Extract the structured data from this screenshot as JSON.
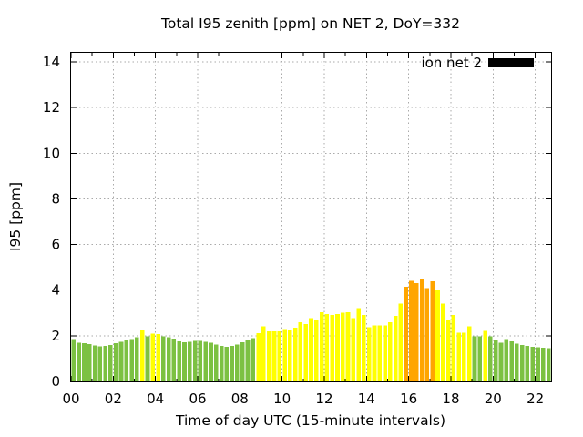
{
  "chart_data": {
    "type": "bar",
    "title": "Total I95 zenith [ppm] on NET 2, DoY=332",
    "xlabel": "Time of day UTC (15-minute intervals)",
    "ylabel": "I95 [ppm]",
    "legend": {
      "label": "ion net 2",
      "swatch_color": "#000000",
      "position": "top-right-inside"
    },
    "grid": true,
    "ylim": [
      0,
      14.4
    ],
    "xlim_hours": [
      0,
      22.75
    ],
    "y_ticks": [
      0,
      2,
      4,
      6,
      8,
      10,
      12,
      14
    ],
    "x_tick_hours": [
      0,
      2,
      4,
      6,
      8,
      10,
      12,
      14,
      16,
      18,
      20,
      22
    ],
    "x_tick_labels": [
      "00",
      "02",
      "04",
      "06",
      "08",
      "10",
      "12",
      "14",
      "16",
      "18",
      "20",
      "22"
    ],
    "x_minor_tick_hours": [
      1,
      3,
      5,
      7,
      9,
      11,
      13,
      15,
      17,
      19,
      21
    ],
    "x_start_hour": 0,
    "x_step_hours": 0.25,
    "interval_minutes": 15,
    "bar_colors": {
      "low": "#7CC142",
      "mid": "#FFFF00",
      "high": "#FFA500",
      "thresholds": [
        2,
        4
      ]
    },
    "series": [
      {
        "name": "ion net 2",
        "values": [
          1.85,
          1.7,
          1.67,
          1.63,
          1.57,
          1.53,
          1.56,
          1.6,
          1.67,
          1.74,
          1.82,
          1.86,
          1.93,
          2.26,
          1.98,
          2.09,
          2.08,
          1.98,
          1.94,
          1.88,
          1.76,
          1.71,
          1.73,
          1.78,
          1.78,
          1.73,
          1.69,
          1.62,
          1.56,
          1.52,
          1.56,
          1.62,
          1.72,
          1.82,
          1.89,
          2.11,
          2.42,
          2.19,
          2.19,
          2.2,
          2.29,
          2.25,
          2.35,
          2.59,
          2.51,
          2.78,
          2.69,
          3.04,
          2.95,
          2.91,
          2.95,
          3.02,
          3.04,
          2.78,
          3.22,
          2.91,
          2.38,
          2.46,
          2.46,
          2.46,
          2.6,
          2.88,
          3.42,
          4.15,
          4.41,
          4.31,
          4.47,
          4.08,
          4.39,
          3.99,
          3.42,
          2.68,
          2.91,
          2.13,
          2.13,
          2.42,
          1.97,
          1.97,
          2.22,
          1.98,
          1.79,
          1.69,
          1.85,
          1.76,
          1.66,
          1.6,
          1.56,
          1.52,
          1.5,
          1.48,
          1.46
        ]
      }
    ]
  }
}
